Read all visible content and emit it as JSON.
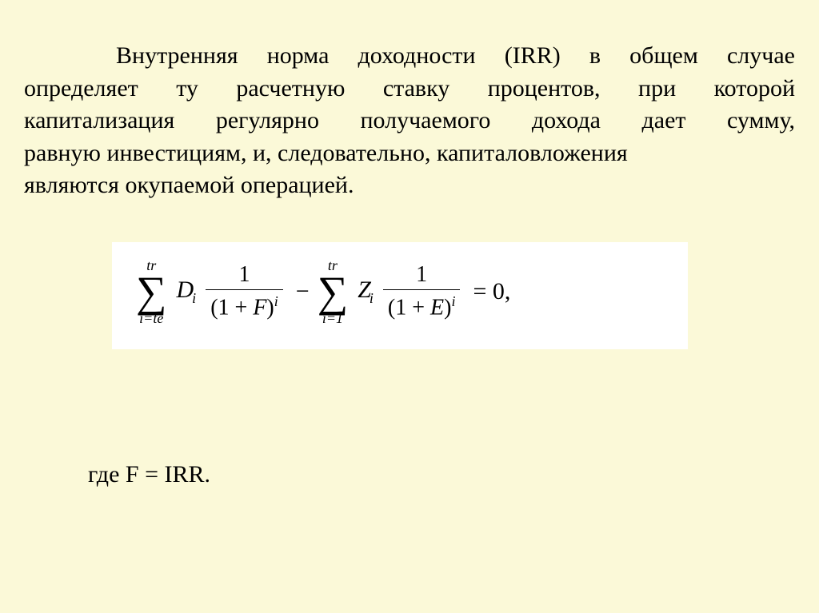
{
  "page": {
    "background_color": "#fbf9d8",
    "text_color": "#000000",
    "font_family": "Times New Roman",
    "font_size_pt": 22
  },
  "paragraph": {
    "line1": "Внутренняя норма доходности (IRR) в общем случае",
    "line2": "определяет ту расчетную ставку процентов, при которой",
    "line3": "капитализация регулярно получаемого дохода дает сумму,",
    "line4": "равную инвестициям, и, следовательно, капиталовложения",
    "line5": "являются окупаемой операцией."
  },
  "formula": {
    "box_background": "#ffffff",
    "sum1_upper": "tr",
    "sum1_lower": "i=te",
    "term1_var": "D",
    "term1_sub": "i",
    "frac1_num": "1",
    "frac1_den_left": "(1 + ",
    "frac1_den_var": "F",
    "frac1_den_right": ")",
    "frac1_den_sup": "i",
    "minus": "−",
    "sum2_upper": "tr",
    "sum2_lower": "i=1",
    "term2_var": "Z",
    "term2_sub": "i",
    "frac2_num": "1",
    "frac2_den_left": "(1 + ",
    "frac2_den_var": "E",
    "frac2_den_right": ")",
    "frac2_den_sup": "i",
    "equals_zero": "= 0,"
  },
  "where": "где F = IRR."
}
